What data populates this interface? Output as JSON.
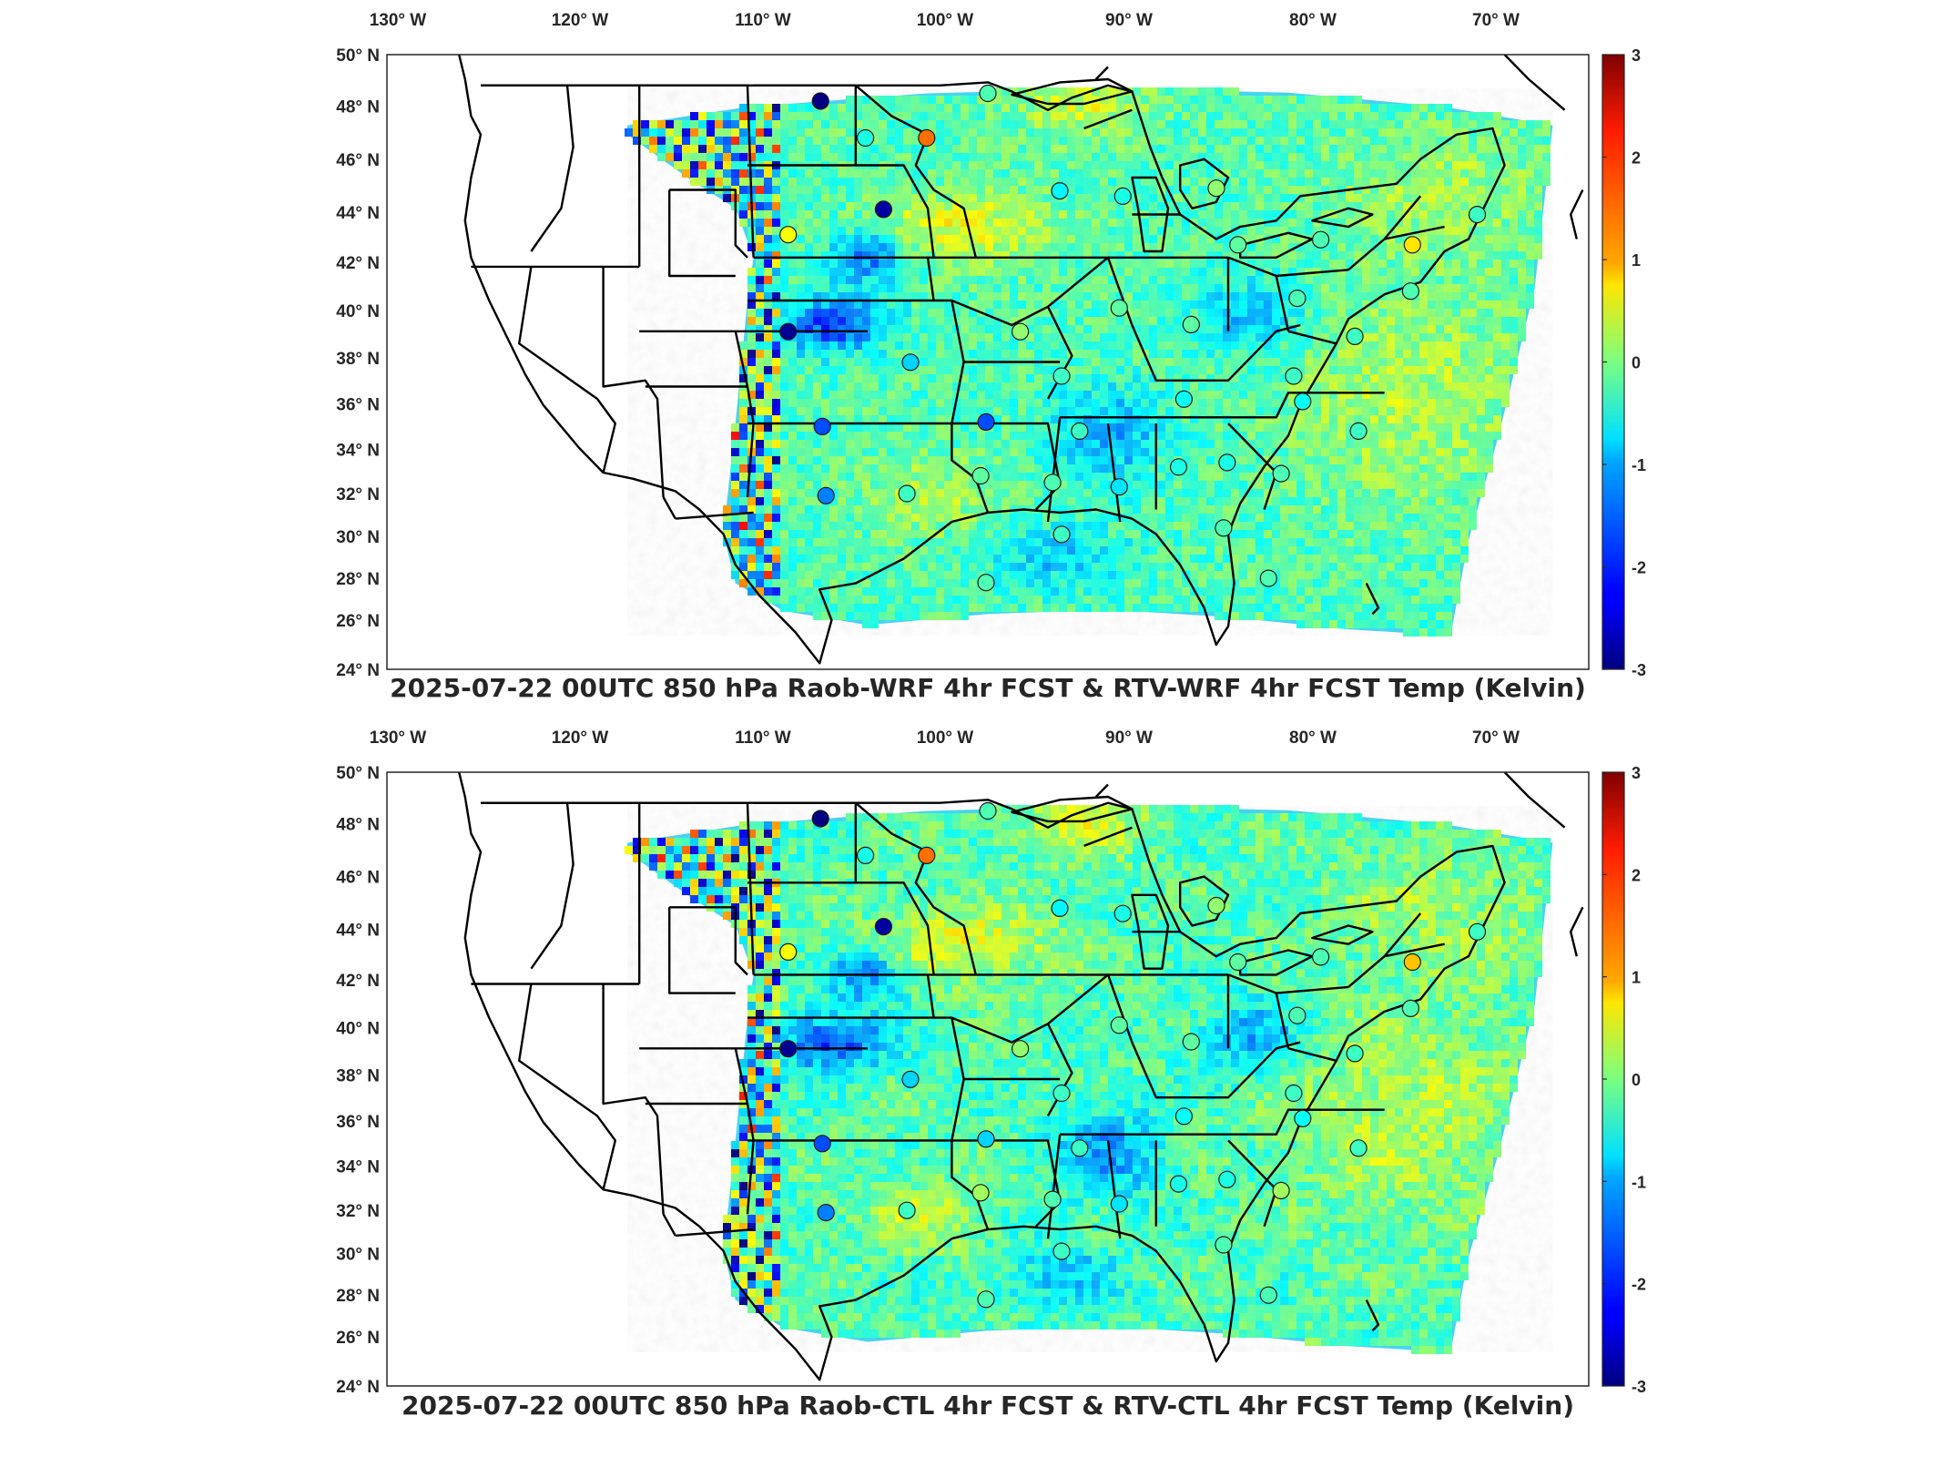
{
  "colorbar": {
    "ticks": [
      "3",
      "2",
      "1",
      "0",
      "-1",
      "-2",
      "-3"
    ],
    "min": -3,
    "max": 3,
    "colormap": "jet"
  },
  "longitude_labels": [
    "130",
    "120",
    "110",
    "100",
    "90",
    "80",
    "70"
  ],
  "longitude_hemisphere": "W",
  "latitude_labels": [
    "50",
    "48",
    "46",
    "44",
    "42",
    "40",
    "38",
    "36",
    "34",
    "32",
    "30",
    "28",
    "26",
    "24"
  ],
  "latitude_hemisphere": "N",
  "degree_symbol": "°",
  "panels": [
    {
      "id": "top",
      "title": "2025-07-22 00UTC 850 hPa Raob-WRF 4hr FCST & RTV-WRF 4hr FCST Temp (Kelvin)"
    },
    {
      "id": "bottom",
      "title": "2025-07-22 00UTC 850 hPa Raob-CTL 4hr FCST & RTV-CTL 4hr FCST Temp (Kelvin)"
    }
  ],
  "raob_stations": {
    "top": [
      {
        "lon": -106.7,
        "lat": 48.2,
        "val": -3.0
      },
      {
        "lon": -104.2,
        "lat": 46.8,
        "val": -0.6
      },
      {
        "lon": -100.8,
        "lat": 46.8,
        "val": 1.6
      },
      {
        "lon": -103.2,
        "lat": 44.1,
        "val": -2.8
      },
      {
        "lon": -108.5,
        "lat": 43.1,
        "val": 0.7
      },
      {
        "lon": -108.5,
        "lat": 39.1,
        "val": -2.9
      },
      {
        "lon": -106.6,
        "lat": 35.0,
        "val": -1.8
      },
      {
        "lon": -97.4,
        "lat": 48.5,
        "val": -0.3
      },
      {
        "lon": -93.4,
        "lat": 44.8,
        "val": -0.8
      },
      {
        "lon": -89.9,
        "lat": 44.6,
        "val": -0.6
      },
      {
        "lon": -84.7,
        "lat": 44.9,
        "val": 0.1
      },
      {
        "lon": -83.5,
        "lat": 42.7,
        "val": -0.2
      },
      {
        "lon": -78.9,
        "lat": 42.9,
        "val": -0.3
      },
      {
        "lon": -73.8,
        "lat": 42.7,
        "val": 0.9
      },
      {
        "lon": -70.2,
        "lat": 43.9,
        "val": -0.4
      },
      {
        "lon": -90.1,
        "lat": 40.1,
        "val": -0.2
      },
      {
        "lon": -86.1,
        "lat": 39.4,
        "val": -0.2
      },
      {
        "lon": -80.2,
        "lat": 40.5,
        "val": -0.3
      },
      {
        "lon": -95.6,
        "lat": 39.1,
        "val": 0.1
      },
      {
        "lon": -101.7,
        "lat": 37.8,
        "val": -1.0
      },
      {
        "lon": -97.5,
        "lat": 35.2,
        "val": -1.8
      },
      {
        "lon": -93.3,
        "lat": 37.2,
        "val": -0.4
      },
      {
        "lon": -92.3,
        "lat": 34.8,
        "val": -0.4
      },
      {
        "lon": -86.5,
        "lat": 36.2,
        "val": -0.7
      },
      {
        "lon": -80.4,
        "lat": 37.2,
        "val": -0.4
      },
      {
        "lon": -77.0,
        "lat": 38.9,
        "val": -0.4
      },
      {
        "lon": -79.9,
        "lat": 36.1,
        "val": -0.7
      },
      {
        "lon": -76.8,
        "lat": 34.8,
        "val": -0.4
      },
      {
        "lon": -97.8,
        "lat": 32.8,
        "val": -0.2
      },
      {
        "lon": -101.9,
        "lat": 32.0,
        "val": -0.4
      },
      {
        "lon": -93.8,
        "lat": 32.5,
        "val": -0.3
      },
      {
        "lon": -90.1,
        "lat": 32.3,
        "val": -0.9
      },
      {
        "lon": -86.8,
        "lat": 33.2,
        "val": -0.6
      },
      {
        "lon": -84.1,
        "lat": 33.4,
        "val": -0.6
      },
      {
        "lon": -81.1,
        "lat": 32.9,
        "val": -0.3
      },
      {
        "lon": -106.4,
        "lat": 31.9,
        "val": -1.5
      },
      {
        "lon": -93.3,
        "lat": 30.1,
        "val": -0.4
      },
      {
        "lon": -84.3,
        "lat": 30.4,
        "val": -0.3
      },
      {
        "lon": -97.5,
        "lat": 27.8,
        "val": -0.3
      },
      {
        "lon": -81.8,
        "lat": 28.0,
        "val": -0.3
      },
      {
        "lon": -73.9,
        "lat": 40.8,
        "val": -0.3
      }
    ],
    "bottom": [
      {
        "lon": -106.7,
        "lat": 48.2,
        "val": -3.0
      },
      {
        "lon": -104.2,
        "lat": 46.8,
        "val": -0.6
      },
      {
        "lon": -100.8,
        "lat": 46.8,
        "val": 1.6
      },
      {
        "lon": -103.2,
        "lat": 44.1,
        "val": -2.8
      },
      {
        "lon": -108.5,
        "lat": 43.1,
        "val": 0.7
      },
      {
        "lon": -108.5,
        "lat": 39.1,
        "val": -2.9
      },
      {
        "lon": -106.6,
        "lat": 35.0,
        "val": -1.8
      },
      {
        "lon": -97.4,
        "lat": 48.5,
        "val": -0.3
      },
      {
        "lon": -93.4,
        "lat": 44.8,
        "val": -0.8
      },
      {
        "lon": -89.9,
        "lat": 44.6,
        "val": -0.6
      },
      {
        "lon": -84.7,
        "lat": 44.9,
        "val": 0.1
      },
      {
        "lon": -83.5,
        "lat": 42.7,
        "val": -0.2
      },
      {
        "lon": -78.9,
        "lat": 42.9,
        "val": -0.3
      },
      {
        "lon": -73.8,
        "lat": 42.7,
        "val": 1.1
      },
      {
        "lon": -70.2,
        "lat": 43.9,
        "val": -0.4
      },
      {
        "lon": -90.1,
        "lat": 40.1,
        "val": -0.2
      },
      {
        "lon": -86.1,
        "lat": 39.4,
        "val": -0.2
      },
      {
        "lon": -80.2,
        "lat": 40.5,
        "val": -0.3
      },
      {
        "lon": -95.6,
        "lat": 39.1,
        "val": 0.1
      },
      {
        "lon": -101.7,
        "lat": 37.8,
        "val": -1.0
      },
      {
        "lon": -97.5,
        "lat": 35.2,
        "val": -1.0
      },
      {
        "lon": -93.3,
        "lat": 37.2,
        "val": -0.4
      },
      {
        "lon": -92.3,
        "lat": 34.8,
        "val": -0.4
      },
      {
        "lon": -86.5,
        "lat": 36.2,
        "val": -0.7
      },
      {
        "lon": -80.4,
        "lat": 37.2,
        "val": -0.4
      },
      {
        "lon": -77.0,
        "lat": 38.9,
        "val": -0.4
      },
      {
        "lon": -79.9,
        "lat": 36.1,
        "val": -0.7
      },
      {
        "lon": -76.8,
        "lat": 34.8,
        "val": -0.4
      },
      {
        "lon": -97.8,
        "lat": 32.8,
        "val": 0.2
      },
      {
        "lon": -101.9,
        "lat": 32.0,
        "val": -0.4
      },
      {
        "lon": -93.8,
        "lat": 32.5,
        "val": -0.3
      },
      {
        "lon": -90.1,
        "lat": 32.3,
        "val": -0.9
      },
      {
        "lon": -86.8,
        "lat": 33.2,
        "val": -0.6
      },
      {
        "lon": -84.1,
        "lat": 33.4,
        "val": -0.6
      },
      {
        "lon": -81.1,
        "lat": 32.9,
        "val": 0.2
      },
      {
        "lon": -106.4,
        "lat": 31.9,
        "val": -1.5
      },
      {
        "lon": -93.3,
        "lat": 30.1,
        "val": -0.4
      },
      {
        "lon": -84.3,
        "lat": 30.4,
        "val": -0.3
      },
      {
        "lon": -97.5,
        "lat": 27.8,
        "val": -0.3
      },
      {
        "lon": -81.8,
        "lat": 28.0,
        "val": -0.3
      },
      {
        "lon": -73.9,
        "lat": 40.8,
        "val": -0.3
      }
    ]
  }
}
